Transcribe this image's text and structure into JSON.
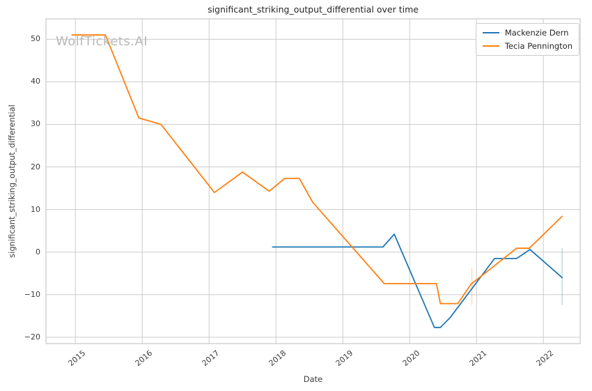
{
  "chart_data": {
    "type": "line",
    "title": "significant_striking_output_differential over time",
    "xlabel": "Date",
    "ylabel": "significant_striking_output_differential",
    "watermark": "WolfTickets.AI",
    "grid": true,
    "legend_position": "upper right",
    "background_color": "#ffffff",
    "grid_color": "#cccccc",
    "spine_color": "#c8c8c8",
    "text_color": "#262626",
    "tick_color": "#3b3b3b",
    "watermark_color": "#b9b9b9",
    "xlim": [
      2014.56,
      2022.55
    ],
    "ylim": [
      -21.5,
      54.8
    ],
    "x_ticks": {
      "values": [
        2015,
        2016,
        2017,
        2018,
        2019,
        2020,
        2021,
        2022
      ],
      "labels": [
        "2015",
        "2016",
        "2017",
        "2018",
        "2019",
        "2020",
        "2021",
        "2022"
      ]
    },
    "y_ticks": {
      "values": [
        50,
        40,
        30,
        20,
        10,
        0,
        -10,
        -20
      ],
      "labels": [
        "50",
        "40",
        "30",
        "20",
        "10",
        "0",
        "−10",
        "−20"
      ]
    },
    "series": [
      {
        "name": "Mackenzie Dern",
        "color": "#1f77b4",
        "points": [
          [
            2017.95,
            1.2
          ],
          [
            2019.6,
            1.2
          ],
          [
            2019.77,
            4.2
          ],
          [
            2020.37,
            -17.7
          ],
          [
            2020.46,
            -17.7
          ],
          [
            2020.61,
            -15.3
          ],
          [
            2021.27,
            -1.5
          ],
          [
            2021.6,
            -1.5
          ],
          [
            2021.8,
            0.6
          ],
          [
            2022.28,
            -6.0
          ]
        ]
      },
      {
        "name": "Tecia Pennington",
        "color": "#ff7f0e",
        "points": [
          [
            2014.95,
            51.0
          ],
          [
            2015.45,
            51.0
          ],
          [
            2015.95,
            31.5
          ],
          [
            2016.28,
            30.0
          ],
          [
            2017.08,
            14.0
          ],
          [
            2017.5,
            18.8
          ],
          [
            2017.9,
            14.3
          ],
          [
            2018.13,
            17.3
          ],
          [
            2018.35,
            17.3
          ],
          [
            2018.55,
            11.7
          ],
          [
            2019.62,
            -7.4
          ],
          [
            2020.4,
            -7.4
          ],
          [
            2020.46,
            -12.1
          ],
          [
            2020.72,
            -12.1
          ],
          [
            2020.92,
            -7.5
          ],
          [
            2021.6,
            0.9
          ],
          [
            2021.79,
            0.9
          ],
          [
            2022.28,
            8.4
          ]
        ]
      }
    ],
    "error_bars": [
      {
        "series": "Tecia Pennington",
        "x": 2020.93,
        "y_top": -3.7,
        "y_bottom": -12.4,
        "color": "#ff7f0e"
      },
      {
        "series": "Mackenzie Dern",
        "x": 2022.28,
        "y_top": 1.0,
        "y_bottom": -12.4,
        "color": "#1f77b4"
      }
    ]
  }
}
